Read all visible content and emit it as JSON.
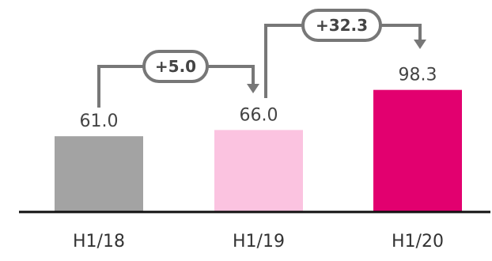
{
  "chart_data": {
    "type": "bar",
    "categories": [
      "H1/18",
      "H1/19",
      "H1/20"
    ],
    "values": [
      61.0,
      66.0,
      98.3
    ],
    "value_labels": [
      "61.0",
      "66.0",
      "98.3"
    ],
    "colors": [
      "#a3a3a3",
      "#fbc3e0",
      "#e2006f"
    ],
    "title": "",
    "xlabel": "",
    "ylabel": "",
    "grid": false,
    "legend": "none",
    "annotations": [
      {
        "from": 0,
        "to": 1,
        "label": "+5.0"
      },
      {
        "from": 1,
        "to": 2,
        "label": "+32.3"
      }
    ]
  }
}
